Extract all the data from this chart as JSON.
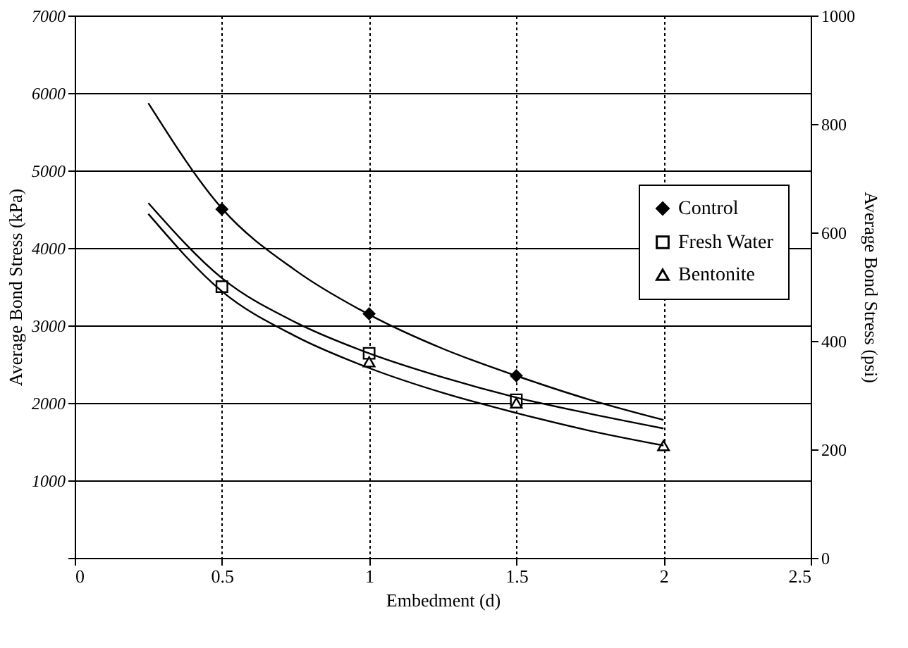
{
  "chart_data": {
    "type": "scatter",
    "xlabel": "Embedment (d)",
    "ylabel": "Average Bond Stress (kPa)",
    "y2label": "Average Bond Stress (psi)",
    "xlim": [
      0,
      2.5
    ],
    "xticks": [
      0,
      0.5,
      1,
      1.5,
      2,
      2.5
    ],
    "ylim": [
      0,
      7000
    ],
    "yticks": [
      {
        "value": 0,
        "label": null
      },
      1000,
      2000,
      3000,
      4000,
      5000,
      6000,
      7000
    ],
    "y2lim": [
      0,
      1000
    ],
    "y2ticks": [
      0,
      200,
      400,
      600,
      800,
      1000
    ],
    "grid": true,
    "legend": "right",
    "series": [
      {
        "name": "Control",
        "color": "#000000",
        "marker": "diamond",
        "x": [
          0.5,
          1,
          1.5
        ],
        "values": [
          4500,
          3150,
          2350
        ]
      },
      {
        "name": "Fresh Water",
        "color": "#000000",
        "marker": "square",
        "x": [
          0.5,
          1,
          1.5
        ],
        "values": [
          3500,
          2640,
          2040
        ]
      },
      {
        "name": "Bentonite",
        "color": "#000000",
        "marker": "triangle",
        "x": [
          1,
          1.5,
          2
        ],
        "values": [
          2530,
          2000,
          1450
        ]
      },
      {
        "type": "line",
        "color": "#000000",
        "x": [
          0.25,
          0.5,
          0.75,
          1,
          1.25,
          1.5,
          1.75,
          2
        ],
        "values": [
          5870,
          4510,
          3710,
          3140,
          2700,
          2350,
          2040,
          1780
        ]
      },
      {
        "type": "line",
        "color": "#000000",
        "x": [
          0.25,
          0.5,
          0.75,
          1,
          1.25,
          1.5,
          1.75,
          2
        ],
        "values": [
          4580,
          3610,
          3040,
          2640,
          2330,
          2070,
          1860,
          1670
        ]
      },
      {
        "type": "line",
        "color": "#000000",
        "x": [
          0.25,
          0.5,
          0.75,
          1,
          1.25,
          1.5,
          1.75,
          2
        ],
        "values": [
          4440,
          3440,
          2860,
          2450,
          2130,
          1870,
          1640,
          1450
        ]
      }
    ]
  }
}
